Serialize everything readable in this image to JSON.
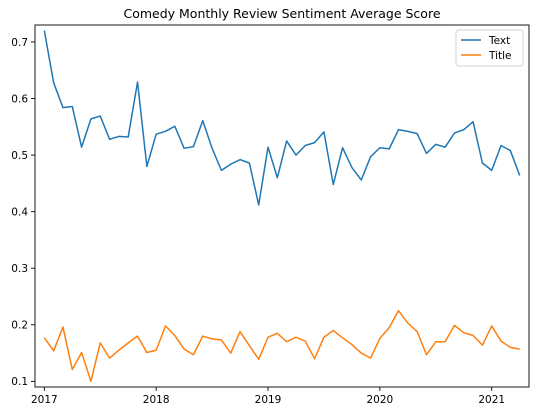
{
  "chart_data": {
    "type": "line",
    "title": "Comedy Monthly Review Sentiment Average Score",
    "xlabel": "",
    "ylabel": "",
    "x_start": "2017-01",
    "x_ticks": [
      "2017",
      "2018",
      "2019",
      "2020",
      "2021"
    ],
    "y_ticks": [
      "0.1",
      "0.2",
      "0.3",
      "0.4",
      "0.5",
      "0.6",
      "0.7"
    ],
    "ylim": [
      0.09,
      0.73
    ],
    "xlim": [
      "2016-12",
      "2021-05"
    ],
    "grid": false,
    "legend_position": "top-right",
    "series": [
      {
        "name": "Text",
        "color": "#1f77b4",
        "values": [
          0.72,
          0.628,
          0.584,
          0.586,
          0.514,
          0.564,
          0.569,
          0.528,
          0.533,
          0.532,
          0.629,
          0.48,
          0.537,
          0.542,
          0.551,
          0.512,
          0.515,
          0.561,
          0.512,
          0.473,
          0.484,
          0.492,
          0.486,
          0.412,
          0.514,
          0.46,
          0.525,
          0.5,
          0.517,
          0.522,
          0.541,
          0.448,
          0.513,
          0.478,
          0.456,
          0.497,
          0.513,
          0.511,
          0.545,
          0.542,
          0.538,
          0.503,
          0.519,
          0.514,
          0.539,
          0.545,
          0.559,
          0.486,
          0.473,
          0.517,
          0.508,
          0.464
        ]
      },
      {
        "name": "Title",
        "color": "#ff7f0e",
        "values": [
          0.177,
          0.154,
          0.196,
          0.121,
          0.151,
          0.1,
          0.168,
          0.141,
          0.155,
          0.168,
          0.18,
          0.151,
          0.155,
          0.198,
          0.181,
          0.157,
          0.147,
          0.18,
          0.175,
          0.173,
          0.15,
          0.188,
          0.163,
          0.139,
          0.178,
          0.185,
          0.17,
          0.178,
          0.171,
          0.14,
          0.178,
          0.19,
          0.177,
          0.165,
          0.15,
          0.141,
          0.176,
          0.195,
          0.225,
          0.203,
          0.188,
          0.147,
          0.17,
          0.17,
          0.199,
          0.186,
          0.181,
          0.164,
          0.198,
          0.171,
          0.16,
          0.157
        ]
      }
    ]
  }
}
